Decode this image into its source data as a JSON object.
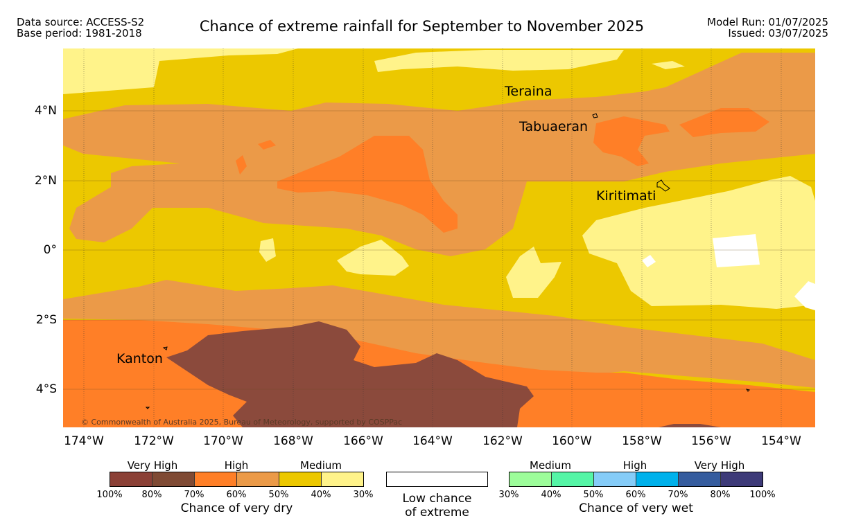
{
  "header": {
    "data_source": "Data source: ACCESS-S2",
    "base_period": "Base period: 1981-2018",
    "title": "Chance of extreme rainfall for September to November 2025",
    "model_run": "Model Run: 01/07/2025",
    "issued": "Issued: 03/07/2025"
  },
  "map": {
    "latitude_labels": [
      "4°N",
      "2°N",
      "0°",
      "2°S",
      "4°S"
    ],
    "longitude_labels": [
      "174°W",
      "172°W",
      "170°W",
      "168°W",
      "166°W",
      "164°W",
      "162°W",
      "160°W",
      "158°W",
      "156°W",
      "154°W"
    ],
    "places": [
      "Teraina",
      "Tabuaeran",
      "Kiritimati",
      "Kanton"
    ],
    "copyright": "© Commonwealth of Australia 2025, Bureau of Meteorology, supported by COSPPac",
    "colors": {
      "very_dry_very_high": "#8b4a3c",
      "very_dry_high": "#ff7f27",
      "very_dry_high_low": "#eb9a48",
      "very_dry_medium": "#ecc800",
      "very_dry_medium_low": "#fff38a",
      "low_chance": "#ffffff"
    }
  },
  "legend": {
    "dry": {
      "categories": [
        "Very High",
        "High",
        "Medium"
      ],
      "ticks": [
        "100%",
        "80%",
        "70%",
        "60%",
        "50%",
        "40%",
        "30%"
      ],
      "colors": [
        "#8b4036",
        "#7f4a34",
        "#ff7f27",
        "#eb9a48",
        "#ecc800",
        "#fff38a"
      ],
      "caption": "Chance of very dry"
    },
    "neutral": {
      "line1": "Low chance",
      "line2": "of extreme"
    },
    "wet": {
      "categories": [
        "Medium",
        "High",
        "Very High"
      ],
      "ticks": [
        "30%",
        "40%",
        "50%",
        "60%",
        "70%",
        "80%",
        "100%"
      ],
      "colors": [
        "#9dfd9a",
        "#55f5a6",
        "#85ccf8",
        "#00b1eb",
        "#355c9e",
        "#3d3a78"
      ],
      "caption": "Chance of very wet"
    }
  }
}
